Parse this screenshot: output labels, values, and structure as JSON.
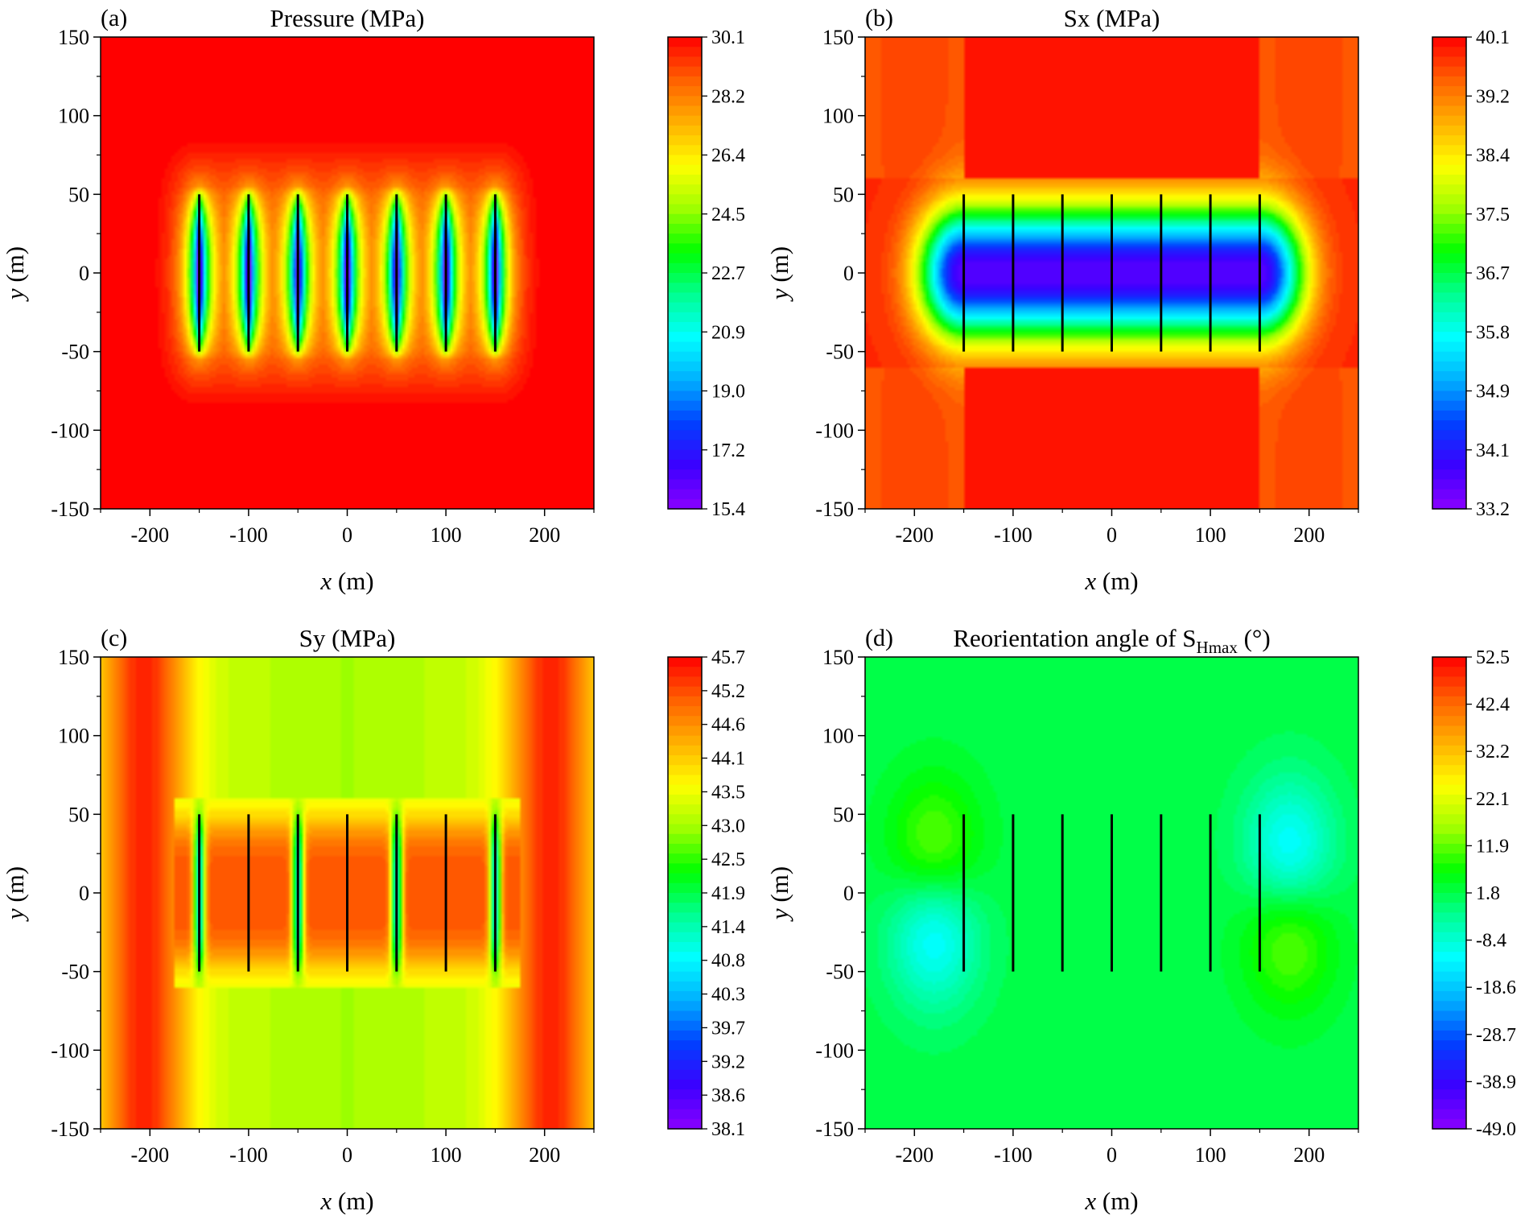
{
  "chart_data": [
    {
      "type": "heatmap",
      "panel_label": "(a)",
      "title": "Pressure (MPa)",
      "xlabel_var": "x",
      "xlabel_unit": " (m)",
      "ylabel_var": "y",
      "ylabel_unit": " (m)",
      "xlim": [
        -250,
        250
      ],
      "ylim": [
        -150,
        150
      ],
      "x_ticks": [
        -200,
        -100,
        0,
        100,
        200
      ],
      "y_ticks": [
        150,
        100,
        50,
        0,
        -50,
        -100,
        -150
      ],
      "fractures_x": [
        -150,
        -100,
        -50,
        0,
        50,
        100,
        150
      ],
      "fracture_y_range": [
        -50,
        50
      ],
      "field": "pressure",
      "colorbar_labels": [
        "30.1",
        "28.2",
        "26.4",
        "24.5",
        "22.7",
        "20.9",
        "19.0",
        "17.2",
        "15.4"
      ],
      "colorbar_range": [
        15.4,
        30.1
      ]
    },
    {
      "type": "heatmap",
      "panel_label": "(b)",
      "title": "Sx (MPa)",
      "xlabel_var": "x",
      "xlabel_unit": " (m)",
      "ylabel_var": "y",
      "ylabel_unit": " (m)",
      "xlim": [
        -250,
        250
      ],
      "ylim": [
        -150,
        150
      ],
      "x_ticks": [
        -200,
        -100,
        0,
        100,
        200
      ],
      "y_ticks": [
        150,
        100,
        50,
        0,
        -50,
        -100,
        -150
      ],
      "fractures_x": [
        -150,
        -100,
        -50,
        0,
        50,
        100,
        150
      ],
      "fracture_y_range": [
        -50,
        50
      ],
      "field": "sx",
      "colorbar_labels": [
        "40.1",
        "39.2",
        "38.4",
        "37.5",
        "36.7",
        "35.8",
        "34.9",
        "34.1",
        "33.2"
      ],
      "colorbar_range": [
        33.2,
        40.1
      ]
    },
    {
      "type": "heatmap",
      "panel_label": "(c)",
      "title": "Sy (MPa)",
      "xlabel_var": "x",
      "xlabel_unit": " (m)",
      "ylabel_var": "y",
      "ylabel_unit": " (m)",
      "xlim": [
        -250,
        250
      ],
      "ylim": [
        -150,
        150
      ],
      "x_ticks": [
        -200,
        -100,
        0,
        100,
        200
      ],
      "y_ticks": [
        150,
        100,
        50,
        0,
        -50,
        -100,
        -150
      ],
      "fractures_x": [
        -150,
        -100,
        -50,
        0,
        50,
        100,
        150
      ],
      "fracture_y_range": [
        -50,
        50
      ],
      "field": "sy",
      "colorbar_labels": [
        "45.7",
        "45.2",
        "44.6",
        "44.1",
        "43.5",
        "43.0",
        "42.5",
        "41.9",
        "41.4",
        "40.8",
        "40.3",
        "39.7",
        "39.2",
        "38.6",
        "38.1"
      ],
      "colorbar_range": [
        38.1,
        45.7
      ]
    },
    {
      "type": "heatmap",
      "panel_label": "(d)",
      "title": "Reorientation angle of S",
      "title_subscript": "Hmax",
      "title_suffix": " (°)",
      "xlabel_var": "x",
      "xlabel_unit": " (m)",
      "ylabel_var": "y",
      "ylabel_unit": " (m)",
      "xlim": [
        -250,
        250
      ],
      "ylim": [
        -150,
        150
      ],
      "x_ticks": [
        -200,
        -100,
        0,
        100,
        200
      ],
      "y_ticks": [
        150,
        100,
        50,
        0,
        -50,
        -100,
        -150
      ],
      "fractures_x": [
        -150,
        -100,
        -50,
        0,
        50,
        100,
        150
      ],
      "fracture_y_range": [
        -50,
        50
      ],
      "field": "angle",
      "colorbar_labels": [
        "52.5",
        "42.4",
        "32.2",
        "22.1",
        "11.9",
        "1.8",
        "-8.4",
        "-18.6",
        "-28.7",
        "-38.9",
        "-49.0"
      ],
      "colorbar_range": [
        -49.0,
        52.5
      ]
    }
  ],
  "colors": {
    "map_stops": [
      "#8a00ff",
      "#3b00ff",
      "#0040ff",
      "#00b0ff",
      "#00ffff",
      "#00ff90",
      "#00ff00",
      "#a0ff00",
      "#ffff00",
      "#ffb000",
      "#ff6000",
      "#ff0000"
    ],
    "fracture": "#000000"
  }
}
